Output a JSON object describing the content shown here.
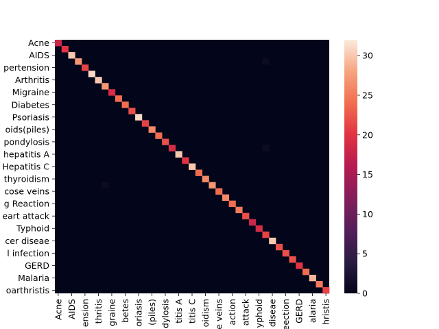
{
  "chart_data": {
    "type": "heatmap",
    "title": "",
    "xlabel": "",
    "ylabel": "",
    "y_tick_labels": [
      "Acne",
      "AIDS",
      "pertension",
      "Arthritis",
      "Migraine",
      "Diabetes",
      "Psoriasis",
      "oids(piles)",
      "pondylosis",
      "hepatitis A",
      "Hepatitis C",
      "thyroidism",
      "cose veins",
      "g Reaction",
      "eart attack",
      "Typhoid",
      "cer diseae",
      "l infection",
      "GERD",
      "Malaria",
      "oarthristis"
    ],
    "x_tick_labels": [
      "Acne",
      "AIDS",
      "ension",
      "thritis",
      "graine",
      "betes",
      "oriasis",
      "(piles)",
      "dylosis",
      "titis A",
      "titis C",
      "oidism",
      "e veins",
      "action",
      "attack",
      "yphoid",
      "diseae",
      "eection",
      "GERD",
      "alaria",
      "hristis"
    ],
    "n_classes": 41,
    "diagonal": [
      18,
      20,
      30,
      27,
      21,
      31,
      30,
      27,
      19,
      24,
      24,
      22,
      31,
      21,
      26,
      24,
      22,
      19,
      30,
      20,
      30,
      24,
      26,
      27,
      24,
      26,
      24,
      25,
      22,
      18,
      19,
      21,
      30,
      22,
      22,
      22,
      20,
      24,
      29,
      25,
      21
    ],
    "off_diagonal": [
      {
        "row": 3,
        "col": 31,
        "value": 1
      },
      {
        "row": 17,
        "col": 31,
        "value": 1
      },
      {
        "row": 23,
        "col": 7,
        "value": 1
      }
    ],
    "colorbar": {
      "min": 0,
      "max": 32,
      "ticks": [
        0,
        5,
        10,
        15,
        20,
        25,
        30
      ]
    },
    "colormap": "rocket",
    "grid": false
  }
}
